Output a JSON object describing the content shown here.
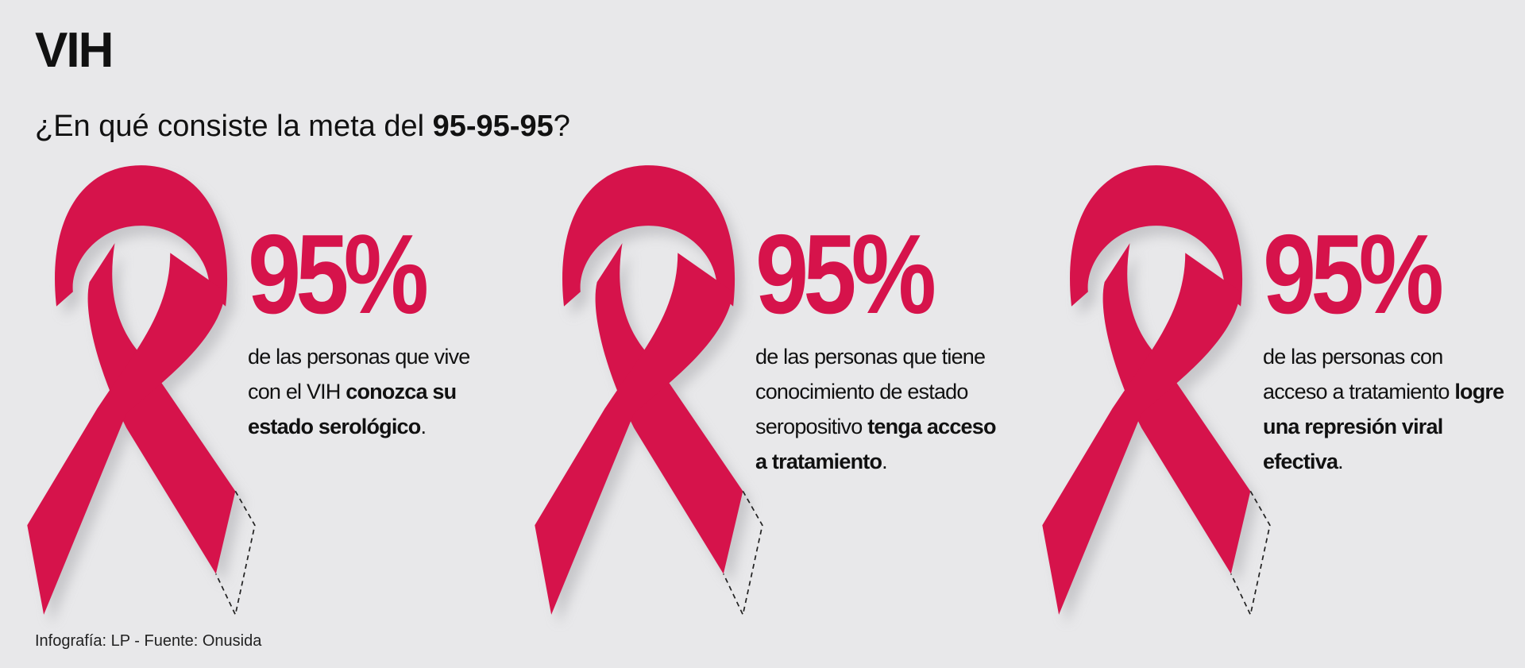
{
  "header": {
    "title": "VIH",
    "subtitle": [
      {
        "text": "¿En qué consiste la meta del ",
        "bold": false
      },
      {
        "text": "95-95-95",
        "bold": true
      },
      {
        "text": "?",
        "bold": false
      }
    ]
  },
  "items": [
    {
      "percent": "95%",
      "description": [
        {
          "text": "de las personas que vive con el VIH ",
          "bold": false
        },
        {
          "text": "conozca su estado serológico",
          "bold": true
        },
        {
          "text": ".",
          "bold": false
        }
      ]
    },
    {
      "percent": "95%",
      "description": [
        {
          "text": "de las personas que tiene conocimiento de estado seropositivo ",
          "bold": false
        },
        {
          "text": "tenga acceso a tratamiento",
          "bold": true
        },
        {
          "text": ".",
          "bold": false
        }
      ]
    },
    {
      "percent": "95%",
      "description": [
        {
          "text": "de las personas con acceso a tratamiento ",
          "bold": false
        },
        {
          "text": "logre una represión viral efectiva",
          "bold": true
        },
        {
          "text": ".",
          "bold": false
        }
      ]
    }
  ],
  "footer": {
    "credit": "Infografía: LP - Fuente: Onusida"
  },
  "style": {
    "accent": "#d6134b",
    "background": "#e8e8ea"
  }
}
